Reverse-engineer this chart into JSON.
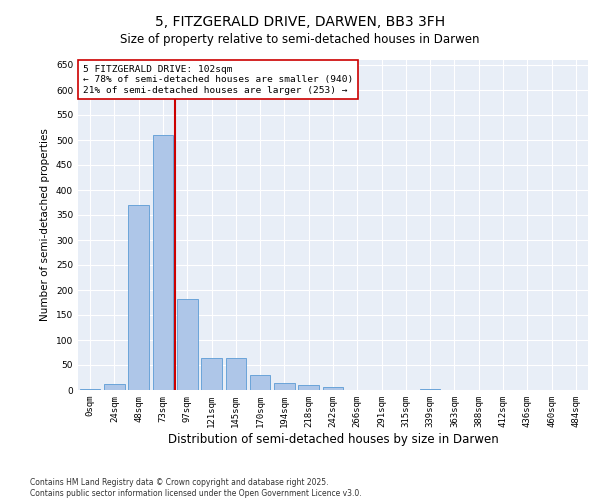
{
  "title": "5, FITZGERALD DRIVE, DARWEN, BB3 3FH",
  "subtitle": "Size of property relative to semi-detached houses in Darwen",
  "xlabel": "Distribution of semi-detached houses by size in Darwen",
  "ylabel": "Number of semi-detached properties",
  "bin_labels": [
    "0sqm",
    "24sqm",
    "48sqm",
    "73sqm",
    "97sqm",
    "121sqm",
    "145sqm",
    "170sqm",
    "194sqm",
    "218sqm",
    "242sqm",
    "266sqm",
    "291sqm",
    "315sqm",
    "339sqm",
    "363sqm",
    "388sqm",
    "412sqm",
    "436sqm",
    "460sqm",
    "484sqm"
  ],
  "bar_values": [
    3,
    12,
    370,
    510,
    183,
    65,
    65,
    30,
    15,
    10,
    6,
    0,
    0,
    0,
    2,
    0,
    0,
    0,
    0,
    0,
    0
  ],
  "bar_color": "#aec6e8",
  "bar_edge_color": "#5b9bd5",
  "vline_color": "#cc0000",
  "annotation_text": "5 FITZGERALD DRIVE: 102sqm\n← 78% of semi-detached houses are smaller (940)\n21% of semi-detached houses are larger (253) →",
  "annotation_box_color": "#ffffff",
  "annotation_box_edge_color": "#cc0000",
  "footer_text": "Contains HM Land Registry data © Crown copyright and database right 2025.\nContains public sector information licensed under the Open Government Licence v3.0.",
  "ylim": [
    0,
    660
  ],
  "yticks": [
    0,
    50,
    100,
    150,
    200,
    250,
    300,
    350,
    400,
    450,
    500,
    550,
    600,
    650
  ],
  "bg_color": "#e8eef7",
  "fig_bg_color": "#ffffff",
  "title_fontsize": 10,
  "subtitle_fontsize": 8.5,
  "axis_label_fontsize": 7.5,
  "tick_fontsize": 6.5,
  "annotation_fontsize": 6.8,
  "footer_fontsize": 5.5
}
